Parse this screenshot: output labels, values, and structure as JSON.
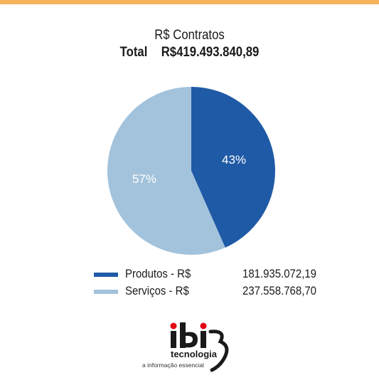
{
  "colors": {
    "accent_bar": "#f7b25c",
    "produtos": "#1f5aa6",
    "servicos": "#a3c3dc",
    "logo_red": "#e30613"
  },
  "header": {
    "title": "R$ Contratos",
    "total_label": "Total",
    "total_value": "R$419.493.840,89"
  },
  "chart_data": {
    "type": "pie",
    "title": "R$ Contratos",
    "slices": [
      {
        "label": "Produtos - R$",
        "value": 181935072.19,
        "value_text": "181.935.072,19",
        "percent_label": "43%",
        "color": "#1f5aa6"
      },
      {
        "label": "Serviços - R$",
        "value": 237558768.7,
        "value_text": "237.558.768,70",
        "percent_label": "57%",
        "color": "#a3c3dc"
      }
    ],
    "legend_position": "bottom"
  },
  "logo": {
    "brand": "ibi",
    "subtitle": "tecnologia",
    "tagline": "a informação essencial"
  }
}
